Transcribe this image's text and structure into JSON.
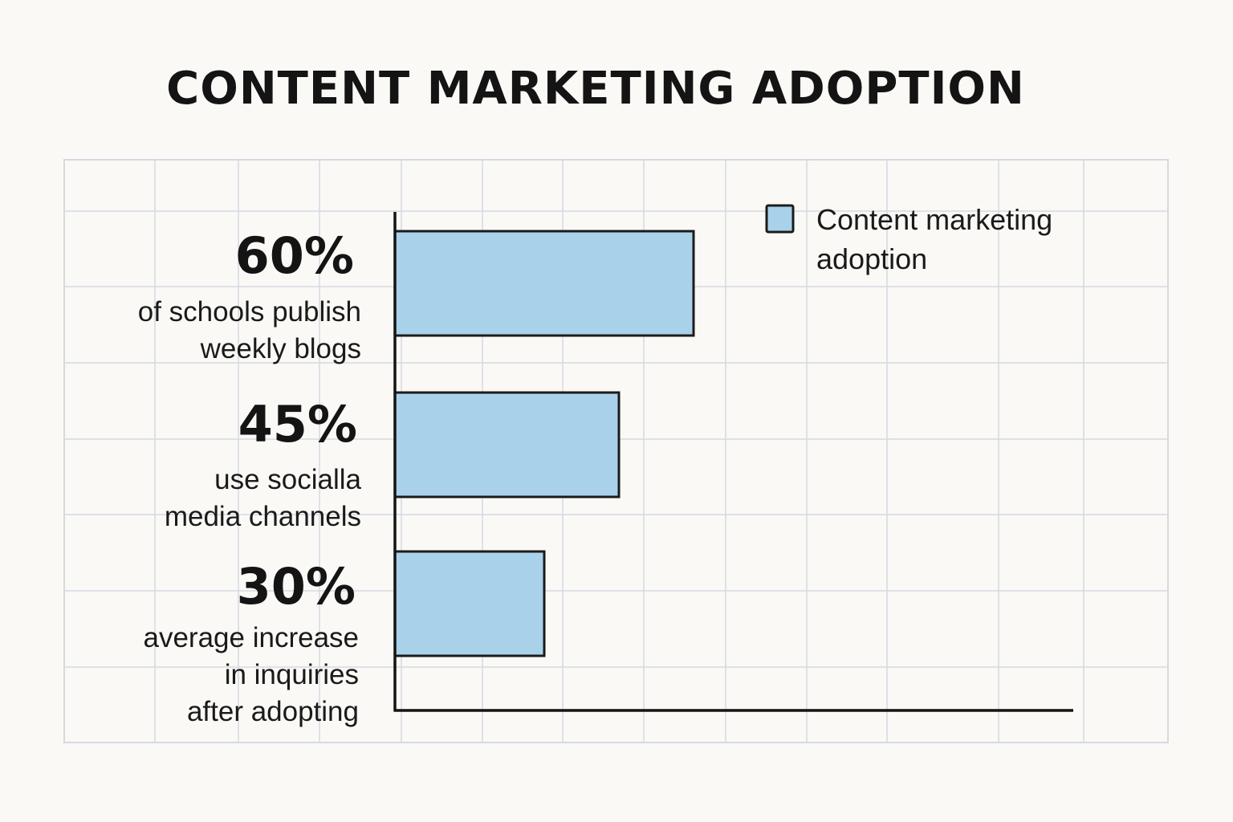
{
  "chart_data": {
    "type": "bar",
    "orientation": "horizontal",
    "title": "CONTENT MARKETING ADOPTION",
    "categories": [
      "of schools publish weekly blogs",
      "use socialla media channels",
      "average increase in inquiries after adopting"
    ],
    "category_lines": [
      [
        "of schools publish",
        "weekly blogs"
      ],
      [
        "use socialla",
        "media channels"
      ],
      [
        "average increase",
        "in inquiries",
        "after adopting"
      ]
    ],
    "value_labels": [
      "60%",
      "45%",
      "30%"
    ],
    "values": [
      60,
      45,
      30
    ],
    "series": [
      {
        "name": "Content marketing adoption",
        "values": [
          60,
          45,
          30
        ]
      }
    ],
    "legend": {
      "label_lines": [
        "Content marketing",
        "adoption"
      ],
      "position": "top-right"
    },
    "bar_color": "#a9d1ea",
    "bar_border_color": "#1b1b1b",
    "grid": true,
    "grid_color": "#d6d9e2",
    "axis_color": "#141414",
    "note": ""
  }
}
